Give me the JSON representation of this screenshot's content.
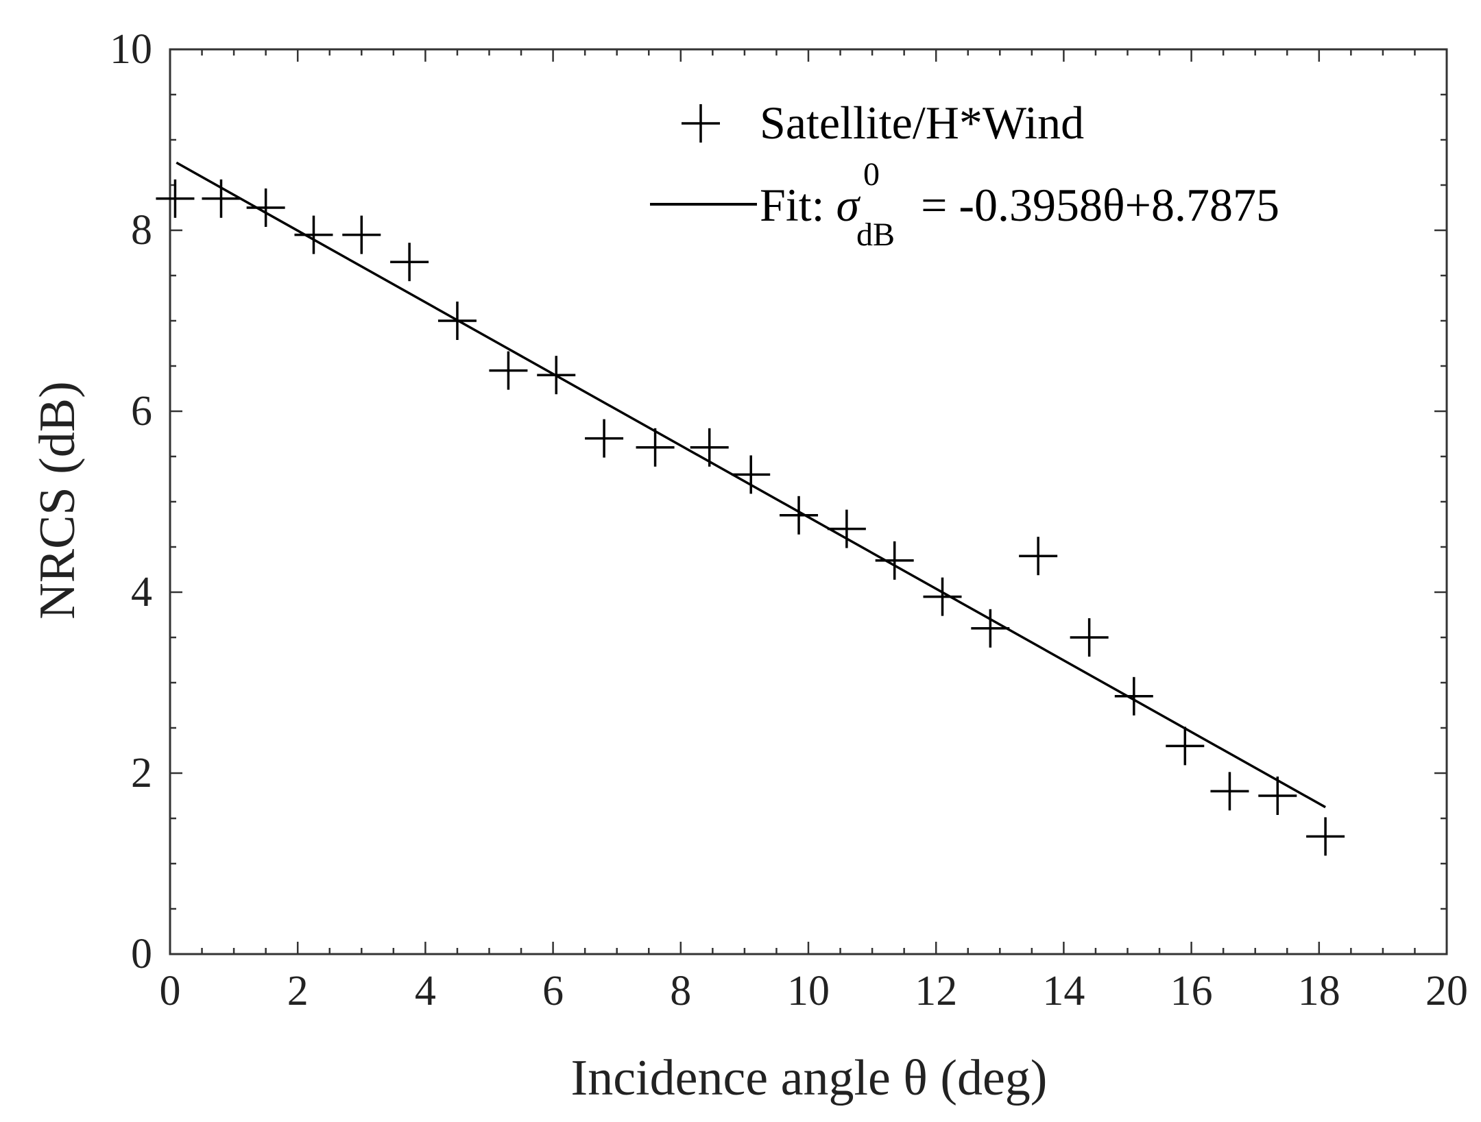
{
  "chart_data": {
    "type": "scatter",
    "title": "",
    "xlabel": "Incidence angle θ (deg)",
    "ylabel": "NRCS (dB)",
    "xlim": [
      0,
      20
    ],
    "ylim": [
      0,
      10
    ],
    "xticks": [
      "0",
      "2",
      "4",
      "6",
      "8",
      "10",
      "12",
      "14",
      "16",
      "18",
      "20"
    ],
    "yticks": [
      "0",
      "2",
      "4",
      "6",
      "8",
      "10"
    ],
    "grid": false,
    "legend_position": "top-right",
    "series": [
      {
        "name": "Satellite/H*Wind",
        "marker": "plus",
        "color": "#000000",
        "x": [
          0.08,
          0.8,
          1.5,
          2.25,
          3.0,
          3.75,
          4.5,
          5.3,
          6.05,
          6.8,
          7.6,
          8.45,
          9.1,
          9.85,
          10.6,
          11.35,
          12.1,
          12.85,
          13.6,
          14.4,
          15.1,
          15.9,
          16.6,
          17.35,
          18.1
        ],
        "y": [
          8.35,
          8.35,
          8.25,
          7.95,
          7.95,
          7.65,
          7.0,
          6.45,
          6.4,
          5.7,
          5.6,
          5.6,
          5.3,
          4.85,
          4.7,
          4.35,
          3.95,
          3.6,
          4.4,
          3.5,
          2.85,
          2.3,
          1.8,
          1.75,
          1.3
        ]
      }
    ],
    "fit": {
      "name_prefix": "Fit: ",
      "symbol": "σ",
      "superscript": "0",
      "subscript": "dB",
      "equation_rest": "= -0.3958θ+8.7875",
      "slope": -0.3958,
      "intercept": 8.7875,
      "x_range": [
        0.1,
        18.1
      ],
      "color": "#000000"
    }
  }
}
